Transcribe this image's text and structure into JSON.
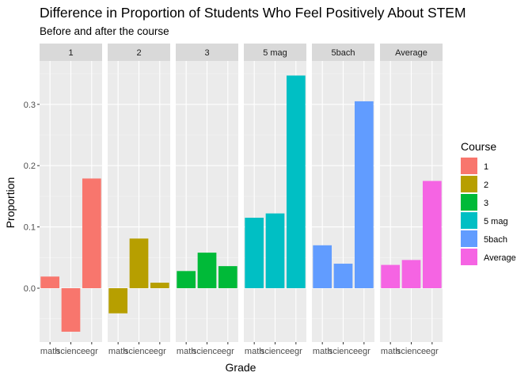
{
  "chart_data": {
    "type": "bar",
    "title": "Difference in Proportion of Students Who Feel Positively About STEM",
    "subtitle": "Before and after the course",
    "xlabel": "Grade",
    "ylabel": "Proportion",
    "ylim": [
      -0.1,
      0.36
    ],
    "yticks": [
      0.0,
      0.1,
      0.2,
      0.3
    ],
    "ytick_labels": [
      "0.0",
      "0.1",
      "0.2",
      "0.3"
    ],
    "grid": true,
    "legend_position": "right",
    "legend_title": "Course",
    "categories": [
      "math",
      "science",
      "egr"
    ],
    "panels": [
      {
        "name": "1",
        "color": "#F8766D",
        "values": [
          0.019,
          -0.071,
          0.179
        ]
      },
      {
        "name": "2",
        "color": "#B79F00",
        "values": [
          -0.041,
          0.081,
          0.009
        ]
      },
      {
        "name": "3",
        "color": "#00BA38",
        "values": [
          0.028,
          0.058,
          0.036
        ]
      },
      {
        "name": "5 mag",
        "color": "#00BFC4",
        "values": [
          0.115,
          0.122,
          0.347
        ]
      },
      {
        "name": "5bach",
        "color": "#619CFF",
        "values": [
          0.07,
          0.04,
          0.305
        ]
      },
      {
        "name": "Average",
        "color": "#F564E3",
        "values": [
          0.038,
          0.046,
          0.175
        ]
      }
    ]
  }
}
